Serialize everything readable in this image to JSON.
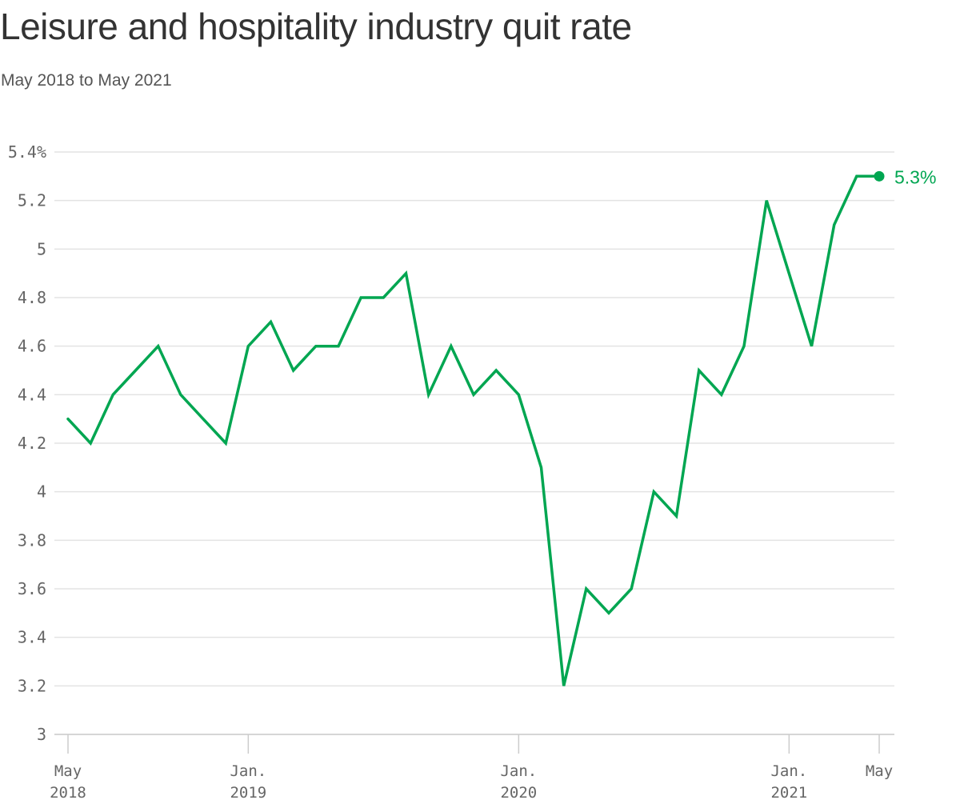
{
  "chart_data": {
    "type": "line",
    "title": "Leisure and hospitality industry quit rate",
    "subtitle": "May 2018 to May 2021",
    "xlabel": "",
    "ylabel": "",
    "ylim": [
      3,
      5.4
    ],
    "y_ticks": [
      {
        "value": 5.4,
        "label": "5.4%"
      },
      {
        "value": 5.2,
        "label": "5.2"
      },
      {
        "value": 5.0,
        "label": "5"
      },
      {
        "value": 4.8,
        "label": "4.8"
      },
      {
        "value": 4.6,
        "label": "4.6"
      },
      {
        "value": 4.4,
        "label": "4.4"
      },
      {
        "value": 4.2,
        "label": "4.2"
      },
      {
        "value": 4.0,
        "label": "4"
      },
      {
        "value": 3.8,
        "label": "3.8"
      },
      {
        "value": 3.6,
        "label": "3.6"
      },
      {
        "value": 3.4,
        "label": "3.4"
      },
      {
        "value": 3.2,
        "label": "3.2"
      },
      {
        "value": 3.0,
        "label": "3"
      }
    ],
    "x_ticks": [
      {
        "date": "2018-05",
        "line1": "May",
        "line2": "2018"
      },
      {
        "date": "2019-01",
        "line1": "Jan.",
        "line2": "2019"
      },
      {
        "date": "2020-01",
        "line1": "Jan.",
        "line2": "2020"
      },
      {
        "date": "2021-01",
        "line1": "Jan.",
        "line2": "2021"
      },
      {
        "date": "2021-05",
        "line1": "May",
        "line2": ""
      }
    ],
    "grid": true,
    "line_color": "#00a651",
    "end_label": "5.3%",
    "series": [
      {
        "x": [
          "2018-05",
          "2018-06",
          "2018-07",
          "2018-08",
          "2018-09",
          "2018-10",
          "2018-11",
          "2018-12",
          "2019-01",
          "2019-02",
          "2019-03",
          "2019-04",
          "2019-05",
          "2019-06",
          "2019-07",
          "2019-08",
          "2019-09",
          "2019-10",
          "2019-11",
          "2019-12",
          "2020-01",
          "2020-02",
          "2020-03",
          "2020-04",
          "2020-05",
          "2020-06",
          "2020-07",
          "2020-08",
          "2020-09",
          "2020-10",
          "2020-11",
          "2020-12",
          "2021-01",
          "2021-02",
          "2021-03",
          "2021-04",
          "2021-05"
        ],
        "values": [
          4.3,
          4.2,
          4.4,
          4.5,
          4.6,
          4.4,
          4.3,
          4.2,
          4.6,
          4.7,
          4.5,
          4.6,
          4.6,
          4.8,
          4.8,
          4.9,
          4.4,
          4.6,
          4.4,
          4.5,
          4.4,
          4.1,
          3.2,
          3.6,
          3.5,
          3.6,
          4.0,
          3.9,
          4.5,
          4.4,
          4.6,
          5.2,
          4.9,
          4.6,
          5.1,
          5.3,
          5.3
        ]
      }
    ]
  }
}
